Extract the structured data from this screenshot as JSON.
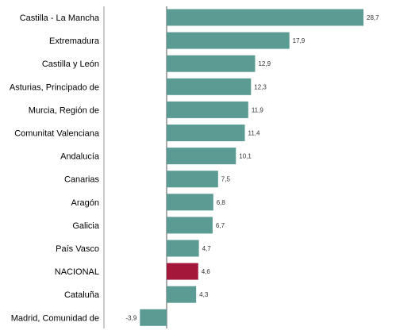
{
  "chart_data": {
    "type": "bar",
    "orientation": "horizontal",
    "title": "",
    "xlabel": "",
    "ylabel": "",
    "grid": false,
    "legend": "none",
    "xlim": [
      -3.9,
      28.7
    ],
    "categories": [
      "Castilla - La Mancha",
      "Extremadura",
      "Castilla y León",
      "Asturias, Principado de",
      "Murcia, Región de",
      "Comunitat Valenciana",
      "Andalucía",
      "Canarias",
      "Aragón",
      "Galicia",
      "País Vasco",
      "NACIONAL",
      "Cataluña",
      "Madrid, Comunidad de"
    ],
    "values": [
      28.7,
      17.9,
      12.9,
      12.3,
      11.9,
      11.4,
      10.1,
      7.5,
      6.8,
      6.7,
      4.7,
      4.6,
      4.3,
      -3.9
    ],
    "value_labels": [
      "28,7",
      "17,9",
      "12,9",
      "12,3",
      "11,9",
      "11,4",
      "10,1",
      "7,5",
      "6,8",
      "6,7",
      "4,7",
      "4,6",
      "4,3",
      "-3,9"
    ],
    "highlight_category": "NACIONAL",
    "colors": {
      "bar": "#5a9b94",
      "highlight": "#a3173a",
      "axis": "#555555",
      "bracket": "#999999"
    }
  }
}
